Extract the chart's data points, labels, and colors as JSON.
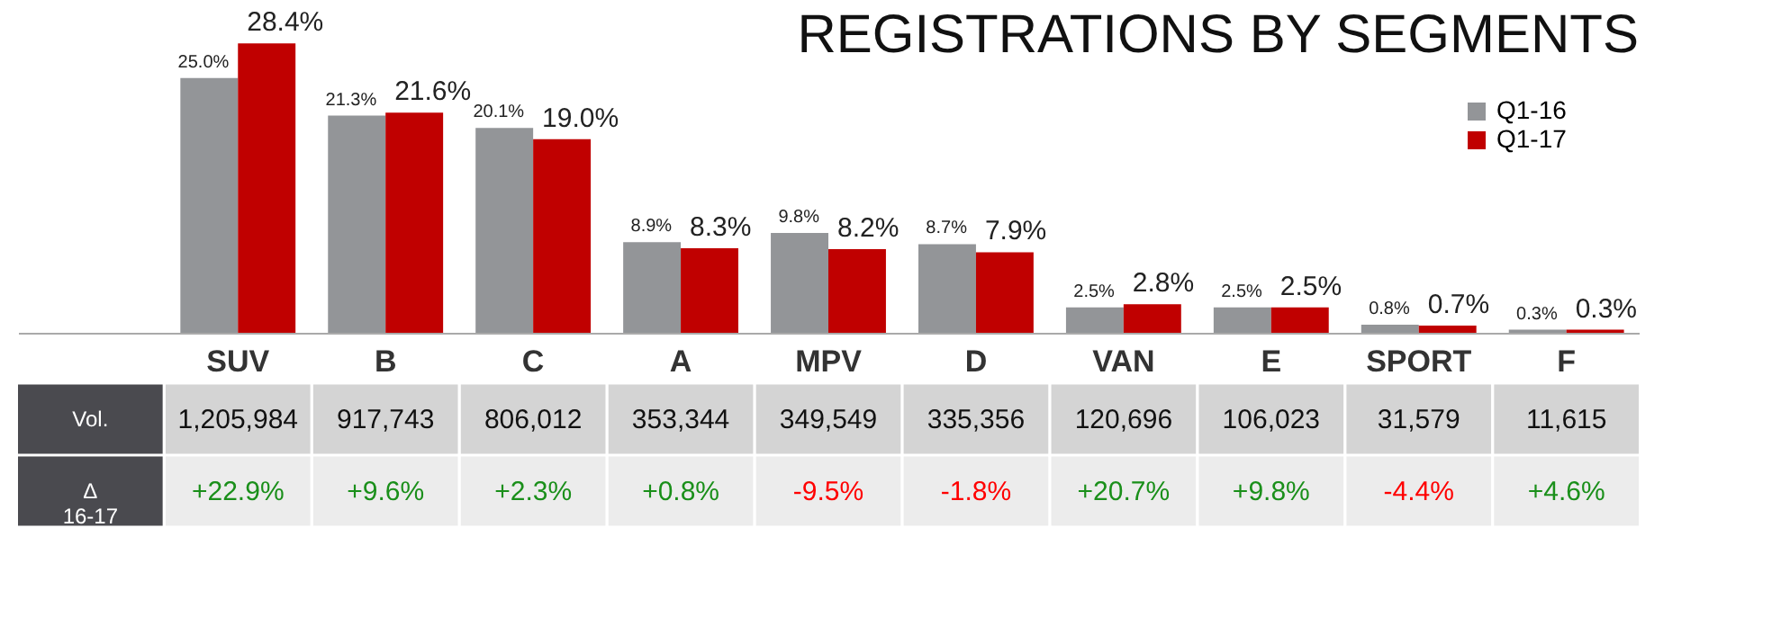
{
  "chart_data": {
    "type": "bar",
    "title": "REGISTRATIONS BY SEGMENTS",
    "categories": [
      "SUV",
      "B",
      "C",
      "A",
      "MPV",
      "D",
      "VAN",
      "E",
      "SPORT",
      "F"
    ],
    "series": [
      {
        "name": "Q1-16",
        "color": "#939598",
        "values": [
          25.0,
          21.3,
          20.1,
          8.9,
          9.8,
          8.7,
          2.5,
          2.5,
          0.8,
          0.3
        ],
        "value_labels": [
          "25.0%",
          "21.3%",
          "20.1%",
          "8.9%",
          "9.8%",
          "8.7%",
          "2.5%",
          "2.5%",
          "0.8%",
          "0.3%"
        ]
      },
      {
        "name": "Q1-17",
        "color": "#c00000",
        "values": [
          28.4,
          21.6,
          19.0,
          8.3,
          8.2,
          7.9,
          2.8,
          2.5,
          0.7,
          0.3
        ],
        "value_labels": [
          "28.4%",
          "21.6%",
          "19.0%",
          "8.3%",
          "8.2%",
          "7.9%",
          "2.8%",
          "2.5%",
          "0.7%",
          "0.3%"
        ]
      }
    ],
    "legend": "top right",
    "grid": false,
    "annotations": [
      "Vol.",
      "1,205,984",
      "917,743",
      "806,012",
      "353,344",
      "349,549",
      "335,356",
      "120,696",
      "106,023",
      "31,579",
      "11,615",
      "Δ 16-17",
      "+22.9%",
      "+9.6%",
      "+2.3%",
      "+0.8%",
      "-9.5%",
      "-1.8%",
      "+20.7%",
      "+9.8%",
      "-4.4%",
      "+4.6%"
    ]
  }
}
